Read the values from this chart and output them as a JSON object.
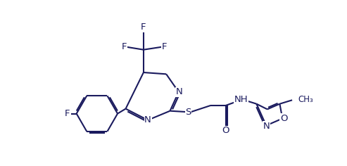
{
  "background_color": "#ffffff",
  "line_color": "#1a1a5e",
  "line_width": 1.5,
  "font_size": 9.5,
  "fig_width": 4.93,
  "fig_height": 2.36,
  "dpi": 100,
  "xlim": [
    0,
    10
  ],
  "ylim": [
    0,
    4.8
  ]
}
